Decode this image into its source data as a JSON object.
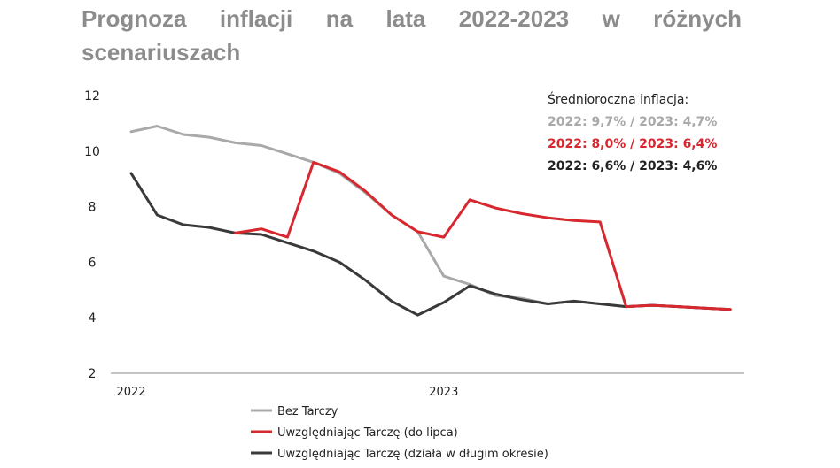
{
  "title": "Prognoza inflacji na lata 2022-2023 w różnych scenariuszach",
  "chart_data": {
    "type": "line",
    "title": "Prognoza inflacji na lata 2022-2023 w różnych scenariuszach",
    "xlabel": "",
    "ylabel": "",
    "ylim": [
      2,
      12
    ],
    "yticks": [
      "12",
      "10",
      "8",
      "6",
      "4",
      "2"
    ],
    "x_tick_labels": [
      "2022",
      "2023"
    ],
    "x": [
      1,
      2,
      3,
      4,
      5,
      6,
      7,
      8,
      9,
      10,
      11,
      12,
      13,
      14,
      15,
      16,
      17,
      18,
      19,
      20,
      21,
      22,
      23,
      24
    ],
    "series": [
      {
        "name": "Bez Tarczy",
        "color": "#a9a9a9",
        "values": [
          10.7,
          10.9,
          10.6,
          10.5,
          10.3,
          10.2,
          9.9,
          9.6,
          9.2,
          8.5,
          7.7,
          7.1,
          5.5,
          5.2,
          4.8,
          4.7,
          4.5,
          4.6,
          4.5,
          4.4,
          4.45,
          4.4,
          4.35,
          4.3
        ]
      },
      {
        "name": "Uwzględniając Tarczę (do lipca)",
        "color": "#d7282f",
        "values": [
          null,
          null,
          null,
          null,
          7.05,
          7.2,
          6.9,
          9.6,
          9.25,
          8.55,
          7.7,
          7.1,
          6.9,
          8.25,
          7.95,
          7.75,
          7.6,
          7.5,
          7.45,
          4.4,
          4.45,
          4.4,
          4.35,
          4.3
        ]
      },
      {
        "name": "Uwzględniając Tarczę (działa w długim okresie)",
        "color": "#3a3a3a",
        "values": [
          9.2,
          7.7,
          7.35,
          7.25,
          7.05,
          7.0,
          6.7,
          6.4,
          6.0,
          5.35,
          4.6,
          4.1,
          4.55,
          5.15,
          4.85,
          4.65,
          4.5,
          4.6,
          4.5,
          4.4,
          4.45,
          4.4,
          4.35,
          4.3
        ]
      }
    ],
    "legend_placement": "bottom-left",
    "grid": false
  },
  "annotation": {
    "heading": "Średnioroczna inflacja:",
    "lines": [
      {
        "text": "2022: 9,7% / 2023: 4,7%",
        "color": "#a9a9a9"
      },
      {
        "text": "2022: 8,0% / 2023: 6,4%",
        "color": "#d7282f"
      },
      {
        "text": "2022: 6,6% / 2023: 4,6%",
        "color": "#222222"
      }
    ]
  }
}
